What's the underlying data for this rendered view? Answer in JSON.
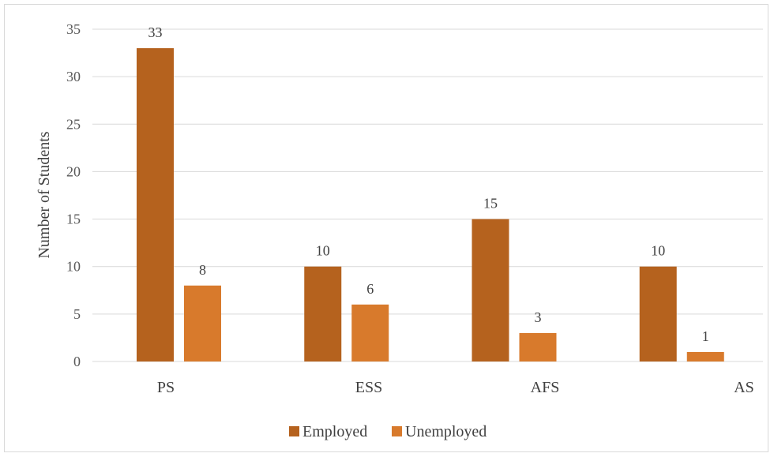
{
  "chart_data": {
    "type": "bar",
    "title": "",
    "xlabel": "",
    "ylabel": "Number of Students",
    "ylim": [
      0,
      35
    ],
    "yticks": [
      0,
      5,
      10,
      15,
      20,
      25,
      30,
      35
    ],
    "grid": true,
    "legend_position": "bottom",
    "categories": [
      "PS",
      "ESS",
      "AFS",
      "AS"
    ],
    "series": [
      {
        "name": "Employed",
        "values": [
          33,
          10,
          15,
          10
        ],
        "color": "#b5621e"
      },
      {
        "name": "Unemployed",
        "values": [
          8,
          6,
          3,
          1
        ],
        "color": "#d87a2c"
      }
    ]
  }
}
